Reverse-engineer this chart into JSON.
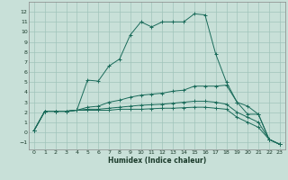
{
  "xlabel": "Humidex (Indice chaleur)",
  "bg_color": "#c8e0d8",
  "line_color": "#1a6b5a",
  "grid_color": "#a0c4ba",
  "xlim": [
    -0.5,
    23.5
  ],
  "ylim": [
    -1.7,
    13.0
  ],
  "xticks": [
    0,
    1,
    2,
    3,
    4,
    5,
    6,
    7,
    8,
    9,
    10,
    11,
    12,
    13,
    14,
    15,
    16,
    17,
    18,
    19,
    20,
    21,
    22,
    23
  ],
  "yticks": [
    -1,
    0,
    1,
    2,
    3,
    4,
    5,
    6,
    7,
    8,
    9,
    10,
    11,
    12
  ],
  "lines": [
    {
      "x": [
        0,
        1,
        2,
        3,
        4,
        5,
        6,
        7,
        8,
        9,
        10,
        11,
        12,
        13,
        14,
        15,
        16,
        17,
        18,
        19,
        20,
        21,
        22,
        23
      ],
      "y": [
        0.2,
        2.1,
        2.1,
        2.1,
        2.2,
        5.2,
        5.1,
        6.6,
        7.3,
        9.7,
        11.0,
        10.5,
        11.0,
        11.0,
        11.0,
        11.8,
        11.7,
        7.8,
        5.0,
        3.0,
        1.8,
        1.8,
        -0.7,
        -1.2
      ]
    },
    {
      "x": [
        0,
        1,
        2,
        3,
        4,
        5,
        6,
        7,
        8,
        9,
        10,
        11,
        12,
        13,
        14,
        15,
        16,
        17,
        18,
        19,
        20,
        21,
        22,
        23
      ],
      "y": [
        0.2,
        2.1,
        2.1,
        2.1,
        2.2,
        2.5,
        2.6,
        3.0,
        3.2,
        3.5,
        3.7,
        3.8,
        3.9,
        4.1,
        4.2,
        4.6,
        4.6,
        4.6,
        4.7,
        3.0,
        2.6,
        1.8,
        -0.7,
        -1.2
      ]
    },
    {
      "x": [
        0,
        1,
        2,
        3,
        4,
        5,
        6,
        7,
        8,
        9,
        10,
        11,
        12,
        13,
        14,
        15,
        16,
        17,
        18,
        19,
        20,
        21,
        22,
        23
      ],
      "y": [
        0.2,
        2.1,
        2.1,
        2.1,
        2.2,
        2.3,
        2.3,
        2.4,
        2.5,
        2.6,
        2.7,
        2.75,
        2.8,
        2.9,
        3.0,
        3.1,
        3.1,
        3.0,
        2.8,
        2.0,
        1.5,
        1.0,
        -0.7,
        -1.2
      ]
    },
    {
      "x": [
        0,
        1,
        2,
        3,
        4,
        5,
        6,
        7,
        8,
        9,
        10,
        11,
        12,
        13,
        14,
        15,
        16,
        17,
        18,
        19,
        20,
        21,
        22,
        23
      ],
      "y": [
        0.2,
        2.1,
        2.1,
        2.1,
        2.2,
        2.2,
        2.2,
        2.2,
        2.3,
        2.3,
        2.3,
        2.35,
        2.4,
        2.4,
        2.45,
        2.5,
        2.5,
        2.4,
        2.3,
        1.5,
        1.0,
        0.5,
        -0.7,
        -1.2
      ]
    }
  ]
}
